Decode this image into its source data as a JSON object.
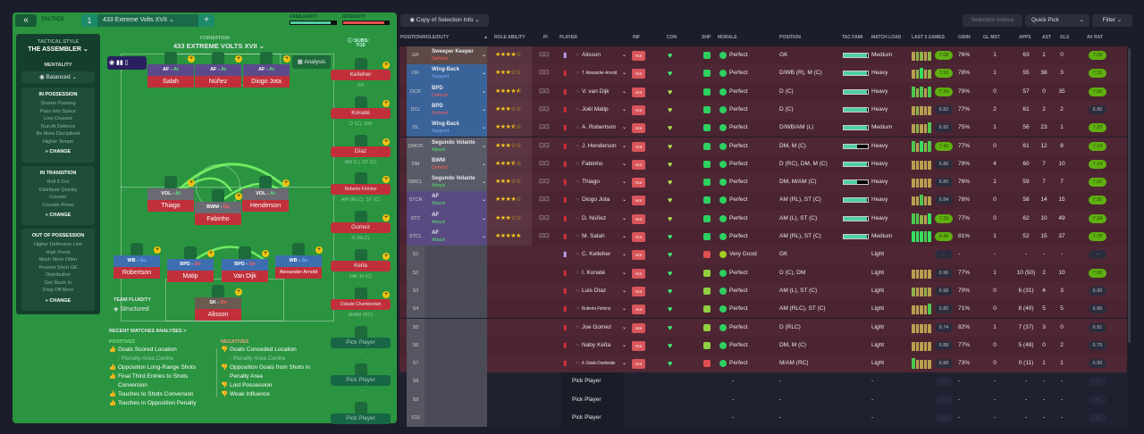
{
  "tactics": {
    "title": "TACTICS",
    "slot": "1",
    "name": "433 Extreme Volts  XVII",
    "familiarity_label": "FAMILIARITY",
    "familiarity": 0.88,
    "intensity_label": "INTENSITY",
    "intensity": 0.9,
    "formation_label": "FORMATION",
    "formation_name": "433 EXTREME VOLTS  XVII",
    "subs_label": "SUBS:",
    "subs_count": "7/15",
    "analysis": "Analysis",
    "team_fluidity_label": "TEAM FLUIDITY",
    "team_fluidity": "Structured"
  },
  "sidebar": {
    "style_label": "TACTICAL STYLE",
    "style": "THE ASSEMBLER",
    "mentality_label": "MENTALITY",
    "mentality": "Balanced",
    "change": "CHANGE",
    "in_possession": {
      "title": "IN POSSESSION",
      "items": [
        "Shorter Passing",
        "Pass Into Space",
        "Low Crosses",
        "Run At Defence",
        "Be More Disciplined",
        "Higher Tempo"
      ]
    },
    "in_transition": {
      "title": "IN TRANSITION",
      "items": [
        "Roll It Out",
        "Distribute Quickly",
        "Counter",
        "Counter-Press"
      ]
    },
    "out_of_possession": {
      "title": "OUT OF POSSESSION",
      "items": [
        "Higher Defensive Line",
        "High Press",
        "Much More Often",
        "Prevent Short GK",
        "Distribution",
        "Get Stuck In",
        "Drop Off More"
      ]
    }
  },
  "pitch": [
    {
      "role": "AF",
      "duty": "At",
      "name": "Salah"
    },
    {
      "role": "AF",
      "duty": "At",
      "name": "Núñez"
    },
    {
      "role": "AF",
      "duty": "At",
      "name": "Diogo Jota"
    },
    {
      "role": "VOL",
      "duty": "At",
      "name": "Thiago"
    },
    {
      "role": "BWM",
      "duty": "De",
      "name": "Fabinho"
    },
    {
      "role": "VOL",
      "duty": "At",
      "name": "Henderson"
    },
    {
      "role": "WB",
      "duty": "Su",
      "name": "Robertson"
    },
    {
      "role": "BPD",
      "duty": "De",
      "name": "Matip"
    },
    {
      "role": "BPD",
      "duty": "De",
      "name": "Van Dijk"
    },
    {
      "role": "WB",
      "duty": "Su",
      "name": "Alexander-Arnold"
    },
    {
      "role": "SK",
      "duty": "De",
      "name": "Alisson"
    }
  ],
  "subs": [
    {
      "name": "Kelleher",
      "pos": "GK"
    },
    {
      "name": "Konaté",
      "pos": "D (C), DM"
    },
    {
      "name": "Díaz",
      "pos": "AM (L), ST (C)"
    },
    {
      "name": "Roberto Firmino",
      "pos": "AM (RLC), ST (C)"
    },
    {
      "name": "Gomez",
      "pos": "D (RLC)"
    },
    {
      "name": "Keita",
      "pos": "DM, M (C)"
    },
    {
      "name": "Oxlade-Chamberlain",
      "pos": "M/AM (RC)"
    },
    {
      "name": "Pick Player",
      "pos": "-"
    },
    {
      "name": "Pick Player",
      "pos": "-"
    },
    {
      "name": "Pick Player",
      "pos": ""
    }
  ],
  "analysis": {
    "title": "RECENT MATCHES ANALYSES >",
    "positives_label": "POSITIVES",
    "negatives_label": "NEGATIVES",
    "positives": [
      "Goals Scored Location",
      "- Penalty Area Centre",
      "Opposition Long-Range Shots",
      "Final Third Entries to Shots",
      "Conversion",
      "Touches to Shots Conversion",
      "Touches in Opposition Penalty"
    ],
    "negatives": [
      "Goals Conceded Location",
      "- Penalty Area Centre",
      "Opposition Goals from Shots in",
      "Penalty Area",
      "Lost Possession",
      "Weak Influence"
    ]
  },
  "toolbar": {
    "copy": "Copy of Selection Info",
    "advice": "Selection Advice",
    "quick_pick": "Quick Pick",
    "filter": "Filter"
  },
  "columns": [
    "POSITION/ROLE/DUTY",
    "ROLE ABILITY",
    "PI",
    "PLAYER",
    "INF",
    "CON",
    "SHP",
    "MORALE",
    "POSITION",
    "TAC FAMI",
    "MATCH LOAD",
    "LAST 5 GAMES",
    "GWIN",
    "GL MST",
    "APPS",
    "AST",
    "GLS",
    "AV RAT"
  ],
  "colors": {
    "hot": "#d9555a",
    "rating_good": "#5fb011",
    "starter_row": "#4a2431"
  },
  "rows": [
    {
      "slot": "GK",
      "role": "Sweeper Keeper",
      "duty": "Defend",
      "stars": 4,
      "player": "Alisson",
      "inf": "Hot",
      "morale": "Perfect",
      "position": "GK",
      "tac": 0.95,
      "load": "Medium",
      "last5": [
        6.8,
        7,
        7,
        6.9,
        7.1
      ],
      "form": "7.08",
      "gwin": "76%",
      "glmst": "1",
      "apps": "63",
      "ast": "1",
      "gls": "0",
      "avrat": "7.09"
    },
    {
      "slot": "DR",
      "role": "Wing-Back",
      "duty": "Support",
      "stars": 3,
      "player": "T. Alexander-Arnold",
      "inf": "Hot",
      "morale": "Perfect",
      "position": "D/WB (R), M (C)",
      "tac": 0.95,
      "load": "Heavy",
      "last5": [
        6.8,
        7,
        7.6,
        6.9,
        7.1
      ],
      "form": "7.10",
      "gwin": "78%",
      "glmst": "1",
      "apps": "55",
      "ast": "38",
      "gls": "3",
      "avrat": "7.31"
    },
    {
      "slot": "DCR",
      "role": "BPD",
      "duty": "Defend",
      "stars": 4.5,
      "player": "V. van Dijk",
      "inf": "Hot",
      "morale": "Perfect",
      "position": "D (C)",
      "tac": 0.95,
      "load": "Heavy",
      "last5": [
        7.4,
        7,
        7.4,
        6.9,
        7.3
      ],
      "form": "7.34",
      "gwin": "79%",
      "glmst": "0",
      "apps": "57",
      "ast": "0",
      "gls": "35",
      "avrat": "7.50"
    },
    {
      "slot": "DCL",
      "role": "BPD",
      "duty": "Defend",
      "stars": 3,
      "player": "Joël Matip",
      "inf": "Hot",
      "morale": "Perfect",
      "position": "D (C)",
      "tac": 0.95,
      "load": "Heavy",
      "last5": [
        6.8,
        7,
        6.9,
        6.7,
        6.6
      ],
      "form": "6.82",
      "gwin": "77%",
      "glmst": "2",
      "apps": "61",
      "ast": "2",
      "gls": "2",
      "avrat": "6.80"
    },
    {
      "slot": "DL",
      "role": "Wing-Back",
      "duty": "Support",
      "stars": 3.5,
      "player": "A. Robertson",
      "inf": "Hot",
      "morale": "Perfect",
      "position": "D/WB/AM (L)",
      "tac": 0.95,
      "load": "Medium",
      "last5": [
        6.9,
        7,
        6.9,
        6.6,
        7.2
      ],
      "form": "6.92",
      "gwin": "75%",
      "glmst": "1",
      "apps": "56",
      "ast": "23",
      "gls": "1",
      "avrat": "7.29"
    },
    {
      "slot": "DMCR",
      "role": "Segundo Volante",
      "duty": "Attack",
      "stars": 3,
      "player": "J. Henderson",
      "inf": "Hot",
      "morale": "Perfect",
      "position": "DM, M (C)",
      "tac": 0.55,
      "load": "Heavy",
      "last5": [
        7.5,
        6.9,
        7.6,
        7,
        7.2
      ],
      "form": "7.42",
      "gwin": "77%",
      "glmst": "0",
      "apps": "61",
      "ast": "12",
      "gls": "8",
      "avrat": "7.14"
    },
    {
      "slot": "DM",
      "role": "BWM",
      "duty": "Defend",
      "stars": 3.5,
      "player": "Fabinho",
      "inf": "Hot",
      "morale": "Perfect",
      "position": "D (RC), DM, M (C)",
      "tac": 0.95,
      "load": "Heavy",
      "last5": [
        6.8,
        6.9,
        6.9,
        6.8,
        6.9
      ],
      "form": "6.86",
      "gwin": "78%",
      "glmst": "4",
      "apps": "60",
      "ast": "7",
      "gls": "10",
      "avrat": "7.14"
    },
    {
      "slot": "DMCL",
      "role": "Segundo Volante",
      "duty": "Attack",
      "stars": 3,
      "player": "Thiago",
      "inf": "Hot",
      "morale": "Perfect",
      "position": "DM, M/AM (C)",
      "tac": 0.55,
      "load": "Heavy",
      "last5": [
        6.8,
        6.8,
        6.9,
        6.8,
        6.8
      ],
      "form": "6.80",
      "gwin": "76%",
      "glmst": "1",
      "apps": "59",
      "ast": "7",
      "gls": "7",
      "avrat": "7.02"
    },
    {
      "slot": "STCR",
      "role": "AF",
      "duty": "Attack",
      "stars": 4,
      "player": "Diogo Jota",
      "inf": "Hot",
      "morale": "Perfect",
      "position": "AM (RL), ST (C)",
      "tac": 0.95,
      "load": "Heavy",
      "last5": [
        6.8,
        6.9,
        7.2,
        6.5,
        6.6
      ],
      "form": "6.84",
      "gwin": "78%",
      "glmst": "0",
      "apps": "58",
      "ast": "14",
      "gls": "15",
      "avrat": "7.30"
    },
    {
      "slot": "STC",
      "role": "AF",
      "duty": "Attack",
      "stars": 3,
      "player": "D. Núñez",
      "inf": "Hot",
      "morale": "Perfect",
      "position": "AM (L), ST (C)",
      "tac": 0.95,
      "load": "Heavy",
      "last5": [
        7.2,
        7.2,
        7.1,
        6.7,
        7.6
      ],
      "form": "7.36",
      "gwin": "77%",
      "glmst": "0",
      "apps": "62",
      "ast": "10",
      "gls": "49",
      "avrat": "7.34"
    },
    {
      "slot": "STCL",
      "role": "AF",
      "duty": "Attack",
      "stars": 5,
      "player": "M. Salah",
      "inf": "Hot",
      "morale": "Perfect",
      "position": "AM (RL), ST (C)",
      "tac": 0.95,
      "load": "Medium",
      "last5": [
        8,
        7.8,
        7.8,
        7.5,
        7.6
      ],
      "form": "8.40",
      "gwin": "81%",
      "glmst": "1",
      "apps": "52",
      "ast": "15",
      "gls": "37",
      "avrat": "7.78"
    },
    {
      "slot": "S1",
      "player": "C. Kelleher",
      "inf": "Hot",
      "morale": "Very Good",
      "position": "GK",
      "load": "Light",
      "last5": [],
      "form": "-",
      "gwin": "-",
      "glmst": "-",
      "apps": "-",
      "ast": "-",
      "gls": "-",
      "avrat": "-"
    },
    {
      "slot": "S2",
      "player": "I. Konaté",
      "inf": "Hot",
      "morale": "Perfect",
      "position": "D (C), DM",
      "load": "Light",
      "last5": [
        6.9,
        6.9,
        6.9,
        6.9,
        6.9
      ],
      "form": "6.96",
      "gwin": "77%",
      "glmst": "1",
      "apps": "10 (50)",
      "ast": "2",
      "gls": "10",
      "avrat": "7.00"
    },
    {
      "slot": "S3",
      "player": "Luis Díaz",
      "inf": "Hot",
      "morale": "Perfect",
      "position": "AM (L), ST (C)",
      "load": "Light",
      "last5": [
        7.1,
        6.8,
        6.9,
        7.1,
        6.9
      ],
      "form": "6.98",
      "gwin": "70%",
      "glmst": "0",
      "apps": "6 (31)",
      "ast": "4",
      "gls": "3",
      "avrat": "6.90"
    },
    {
      "slot": "S4",
      "player": "Roberto Firmino",
      "inf": "Hot",
      "morale": "Perfect",
      "position": "AM (RLC), ST (C)",
      "load": "Light",
      "last5": [
        6.8,
        6.9,
        6.9,
        6.9,
        7.3
      ],
      "form": "6.80",
      "gwin": "71%",
      "glmst": "0",
      "apps": "8 (40)",
      "ast": "5",
      "gls": "5",
      "avrat": "6.86"
    },
    {
      "slot": "S5",
      "player": "Joe Gomez",
      "inf": "Hot",
      "morale": "Perfect",
      "position": "D (RLC)",
      "load": "Light",
      "last5": [
        6.9,
        6.9,
        6.9,
        6.9,
        6.9
      ],
      "form": "6.74",
      "gwin": "82%",
      "glmst": "1",
      "apps": "7 (37)",
      "ast": "3",
      "gls": "0",
      "avrat": "6.91"
    },
    {
      "slot": "S6",
      "player": "Naby Keïta",
      "inf": "Hot",
      "morale": "Perfect",
      "position": "DM, M (C)",
      "load": "Light",
      "last5": [
        6.8,
        6.8,
        6.8,
        6.8,
        6.8
      ],
      "form": "6.88",
      "gwin": "77%",
      "glmst": "0",
      "apps": "5 (48)",
      "ast": "0",
      "gls": "2",
      "avrat": "6.75"
    },
    {
      "slot": "S7",
      "player": "A. Oxlade-Chamberlain",
      "inf": "Hot",
      "morale": "Perfect",
      "position": "M/AM (RC)",
      "load": "Light",
      "last5": [
        7.3,
        6.9,
        6.9,
        6.9,
        6.9
      ],
      "form": "6.88",
      "gwin": "73%",
      "glmst": "0",
      "apps": "0 (11)",
      "ast": "1",
      "gls": "1",
      "avrat": "6.90"
    },
    {
      "slot": "S8",
      "player": "Pick Player",
      "empty": true,
      "morale": "-",
      "position": "-",
      "load": "-",
      "form": "-",
      "gwin": "-",
      "glmst": "-",
      "apps": "-",
      "ast": "-",
      "gls": "-",
      "avrat": "-"
    },
    {
      "slot": "S9",
      "player": "Pick Player",
      "empty": true,
      "morale": "-",
      "position": "-",
      "load": "-",
      "form": "-",
      "gwin": "-",
      "glmst": "-",
      "apps": "-",
      "ast": "-",
      "gls": "-",
      "avrat": "-"
    },
    {
      "slot": "S10",
      "player": "Pick Player",
      "empty": true,
      "morale": "-",
      "position": "-",
      "load": "-",
      "form": "-",
      "gwin": "-",
      "glmst": "-",
      "apps": "-",
      "ast": "-",
      "gls": "-",
      "avrat": "-"
    }
  ]
}
